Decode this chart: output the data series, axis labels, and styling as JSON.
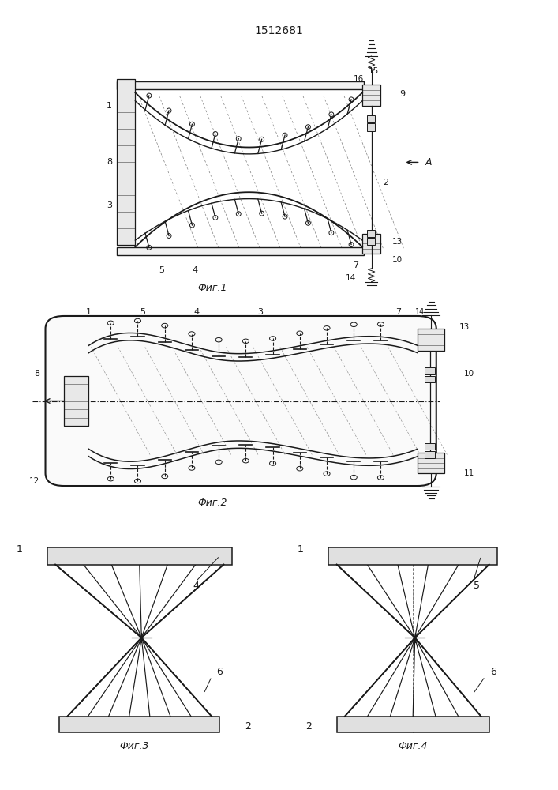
{
  "patent_number": "1512681",
  "bg_color": "#ffffff",
  "line_color": "#1a1a1a",
  "fig1_caption": "Фиг.1",
  "fig2_caption": "Фиг.2",
  "fig3_caption": "Фиг.3",
  "fig4_caption": "Фиг.4",
  "arrow_label": "A"
}
